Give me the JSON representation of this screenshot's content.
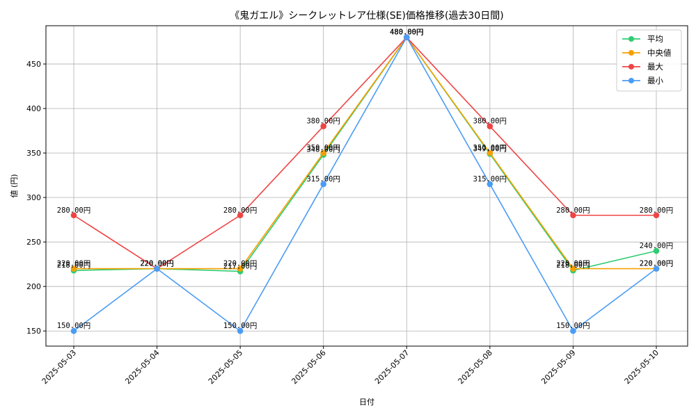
{
  "chart_data": {
    "type": "line",
    "title": "《鬼ガエル》シークレットレア仕様(SE)価格推移(過去30日間)",
    "xlabel": "日付",
    "ylabel": "値 (円)",
    "categories": [
      "2025-05-03",
      "2025-05-04",
      "2025-05-05",
      "2025-05-06",
      "2025-05-07",
      "2025-05-08",
      "2025-05-09",
      "2025-05-10"
    ],
    "yticks": [
      150,
      200,
      250,
      300,
      350,
      400,
      450
    ],
    "ylim": [
      133,
      493
    ],
    "grid": true,
    "legend_position": "top-right",
    "label_suffix": "円",
    "series": [
      {
        "name": "平均",
        "color": "#2ecc71",
        "values": [
          218.0,
          220.0,
          217.0,
          348.0,
          480.0,
          349.0,
          218.0,
          240.0
        ],
        "labels": [
          "218.00円",
          "220.00円",
          "217.00円",
          "348.00円",
          "480.00円",
          "349.00円",
          "218.00円",
          "240.00円"
        ]
      },
      {
        "name": "中央値",
        "color": "#f5a000",
        "values": [
          220.0,
          220.0,
          220.0,
          350.0,
          480.0,
          350.0,
          220.0,
          220.0
        ],
        "labels": [
          "220.00円",
          "220.00円",
          "220.00円",
          "350.00円",
          "480.00円",
          "350.00円",
          "220.00円",
          "220.00円"
        ]
      },
      {
        "name": "最大",
        "color": "#ef4444",
        "values": [
          280.0,
          220.0,
          280.0,
          380.0,
          480.0,
          380.0,
          280.0,
          280.0
        ],
        "labels": [
          "280.00円",
          "220.00円",
          "280.00円",
          "380.00円",
          "480.00円",
          "380.00円",
          "280.00円",
          "280.00円"
        ]
      },
      {
        "name": "最小",
        "color": "#4b9cf5",
        "values": [
          150.0,
          220.0,
          150.0,
          315.0,
          480.0,
          315.0,
          150.0,
          220.0
        ],
        "labels": [
          "150.00円",
          "220.00円",
          "150.00円",
          "315.00円",
          "480.00円",
          "315.00円",
          "150.00円",
          "220.00円"
        ]
      }
    ]
  }
}
